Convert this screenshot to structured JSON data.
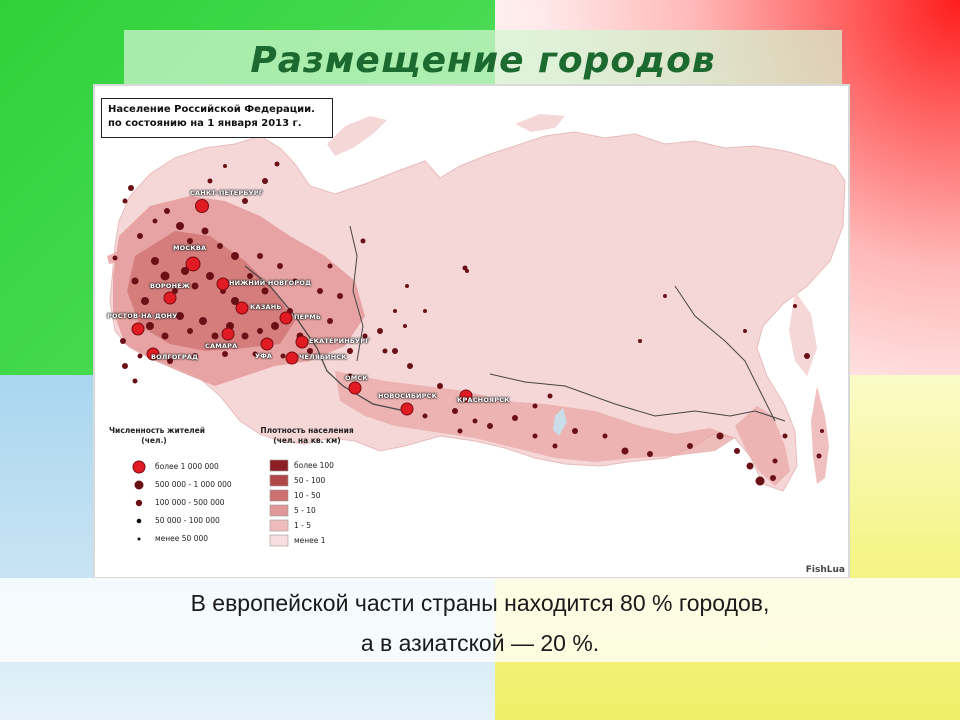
{
  "slide": {
    "title": "Размещение городов",
    "caption_lines": [
      "В европейской части страны находится 80 % городов,",
      "а в азиатской — 20 %."
    ],
    "background_colors": {
      "top_left": "#2fd13a",
      "top_right": "#ff1d1d",
      "bottom_left": "#a9d6ef",
      "bottom_right": "#f0ef6a",
      "title_color": "#1c6a30"
    }
  },
  "map": {
    "header_lines": [
      "Население Российской Федерации.",
      "по состоянию на 1 января 2013 г."
    ],
    "watermark": "FishLua",
    "colors": {
      "land_light": "#f6d7d7",
      "land_medium": "#eeb2b2",
      "land_dark": "#d77b7b",
      "city_major": "#e01b24",
      "city_dot": "#6b0f16",
      "border_line": "#333333"
    },
    "cities": [
      {
        "name": "САНКТ-ПЕТЕРБУРГ"
      },
      {
        "name": "МОСКВА"
      },
      {
        "name": "НИЖНИЙ НОВГОРОД"
      },
      {
        "name": "ВОРОНЕЖ"
      },
      {
        "name": "КАЗАНЬ"
      },
      {
        "name": "РОСТОВ-НА-ДОНУ"
      },
      {
        "name": "ПЕРМЬ"
      },
      {
        "name": "ЕКАТЕРИНБУРГ"
      },
      {
        "name": "САМАРА"
      },
      {
        "name": "УФА"
      },
      {
        "name": "ЧЕЛЯБИНСК"
      },
      {
        "name": "ВОЛГОГРАД"
      },
      {
        "name": "ОМСК"
      },
      {
        "name": "НОВОСИБИРСК"
      },
      {
        "name": "КРАСНОЯРСК"
      }
    ],
    "legend_population": {
      "title_lines": [
        "Численность жителей",
        "(чел.)"
      ],
      "items": [
        {
          "label": "более 1 000 000",
          "size": "largest",
          "color": "#e01b24"
        },
        {
          "label": "500 000 - 1 000 000",
          "size": "large",
          "color": "#6b0f16"
        },
        {
          "label": "100 000 - 500 000",
          "size": "medium",
          "color": "#6b0f16"
        },
        {
          "label": "50 000 - 100 000",
          "size": "small",
          "color": "#111111"
        },
        {
          "label": "менее 50 000",
          "size": "smallest",
          "color": "#111111"
        }
      ]
    },
    "legend_density": {
      "title_lines": [
        "Плотность населения",
        "(чел. на кв. км)"
      ],
      "items": [
        {
          "label": "более 100",
          "color": "#8c1f24"
        },
        {
          "label": "50 - 100",
          "color": "#b04848"
        },
        {
          "label": "10 - 50",
          "color": "#cd7070"
        },
        {
          "label": "5 - 10",
          "color": "#df9797"
        },
        {
          "label": "1 - 5",
          "color": "#efbcbc"
        },
        {
          "label": "менее 1",
          "color": "#f8dede"
        }
      ]
    }
  }
}
